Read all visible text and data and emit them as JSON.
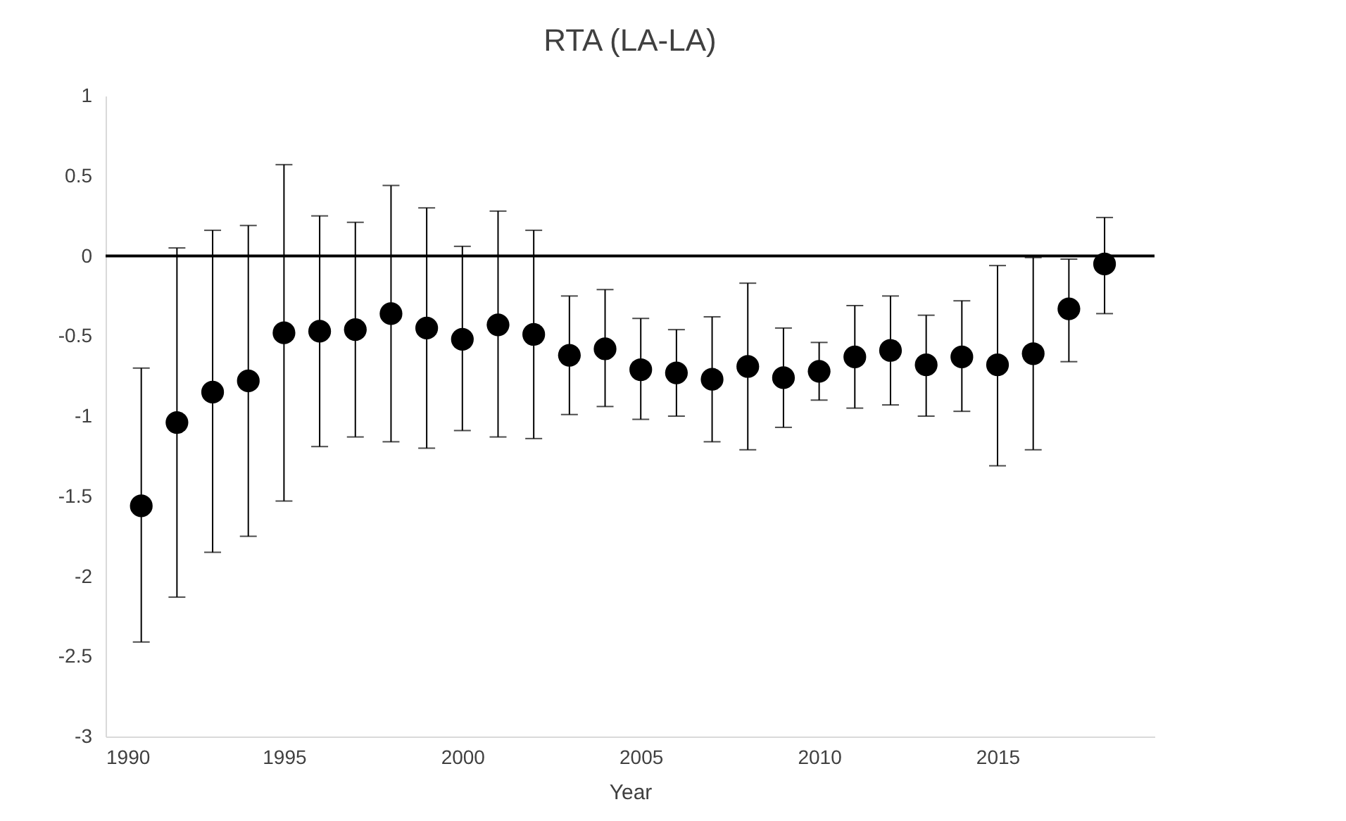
{
  "chart_data": {
    "type": "scatter",
    "title": "RTA (LA-LA)",
    "xlabel": "Year",
    "x": [
      1991,
      1992,
      1993,
      1994,
      1995,
      1996,
      1997,
      1998,
      1999,
      2000,
      2001,
      2002,
      2003,
      2004,
      2005,
      2006,
      2007,
      2008,
      2009,
      2010,
      2011,
      2012,
      2013,
      2014,
      2015,
      2016,
      2017,
      2018
    ],
    "series": [
      {
        "color": "#000000",
        "values": [
          -1.56,
          -1.04,
          -0.85,
          -0.78,
          -0.48,
          -0.47,
          -0.46,
          -0.36,
          -0.45,
          -0.52,
          -0.43,
          -0.49,
          -0.62,
          -0.58,
          -0.71,
          -0.73,
          -0.77,
          -0.69,
          -0.76,
          -0.72,
          -0.63,
          -0.59,
          -0.68,
          -0.63,
          -0.68,
          -0.61,
          -0.33,
          -0.05
        ],
        "errors": [
          [
            -2.41,
            -0.7
          ],
          [
            -2.13,
            0.05
          ],
          [
            -1.85,
            0.16
          ],
          [
            -1.75,
            0.19
          ],
          [
            -1.53,
            0.57
          ],
          [
            -1.19,
            0.25
          ],
          [
            -1.13,
            0.21
          ],
          [
            -1.16,
            0.44
          ],
          [
            -1.2,
            0.3
          ],
          [
            -1.09,
            0.06
          ],
          [
            -1.13,
            0.28
          ],
          [
            -1.14,
            0.16
          ],
          [
            -0.99,
            -0.25
          ],
          [
            -0.94,
            -0.21
          ],
          [
            -1.02,
            -0.39
          ],
          [
            -1.0,
            -0.46
          ],
          [
            -1.16,
            -0.38
          ],
          [
            -1.21,
            -0.17
          ],
          [
            -1.07,
            -0.45
          ],
          [
            -0.9,
            -0.54
          ],
          [
            -0.95,
            -0.31
          ],
          [
            -0.93,
            -0.25
          ],
          [
            -1.0,
            -0.37
          ],
          [
            -0.97,
            -0.28
          ],
          [
            -1.31,
            -0.06
          ],
          [
            -1.21,
            -0.01
          ],
          [
            -0.66,
            -0.02
          ],
          [
            -0.36,
            0.24
          ]
        ]
      }
    ],
    "xlim": [
      1990,
      2019.4
    ],
    "xticks": [
      1990,
      1995,
      2000,
      2005,
      2010,
      2015
    ],
    "ylim": [
      -3,
      1
    ],
    "yticks": [
      -3,
      -2.5,
      -2,
      -1.5,
      -1,
      -0.5,
      0,
      0.5,
      1
    ],
    "ref_lines": [
      {
        "axis": "y",
        "value": 0,
        "color": "#000000"
      }
    ],
    "grid": false,
    "marker": "circle"
  }
}
